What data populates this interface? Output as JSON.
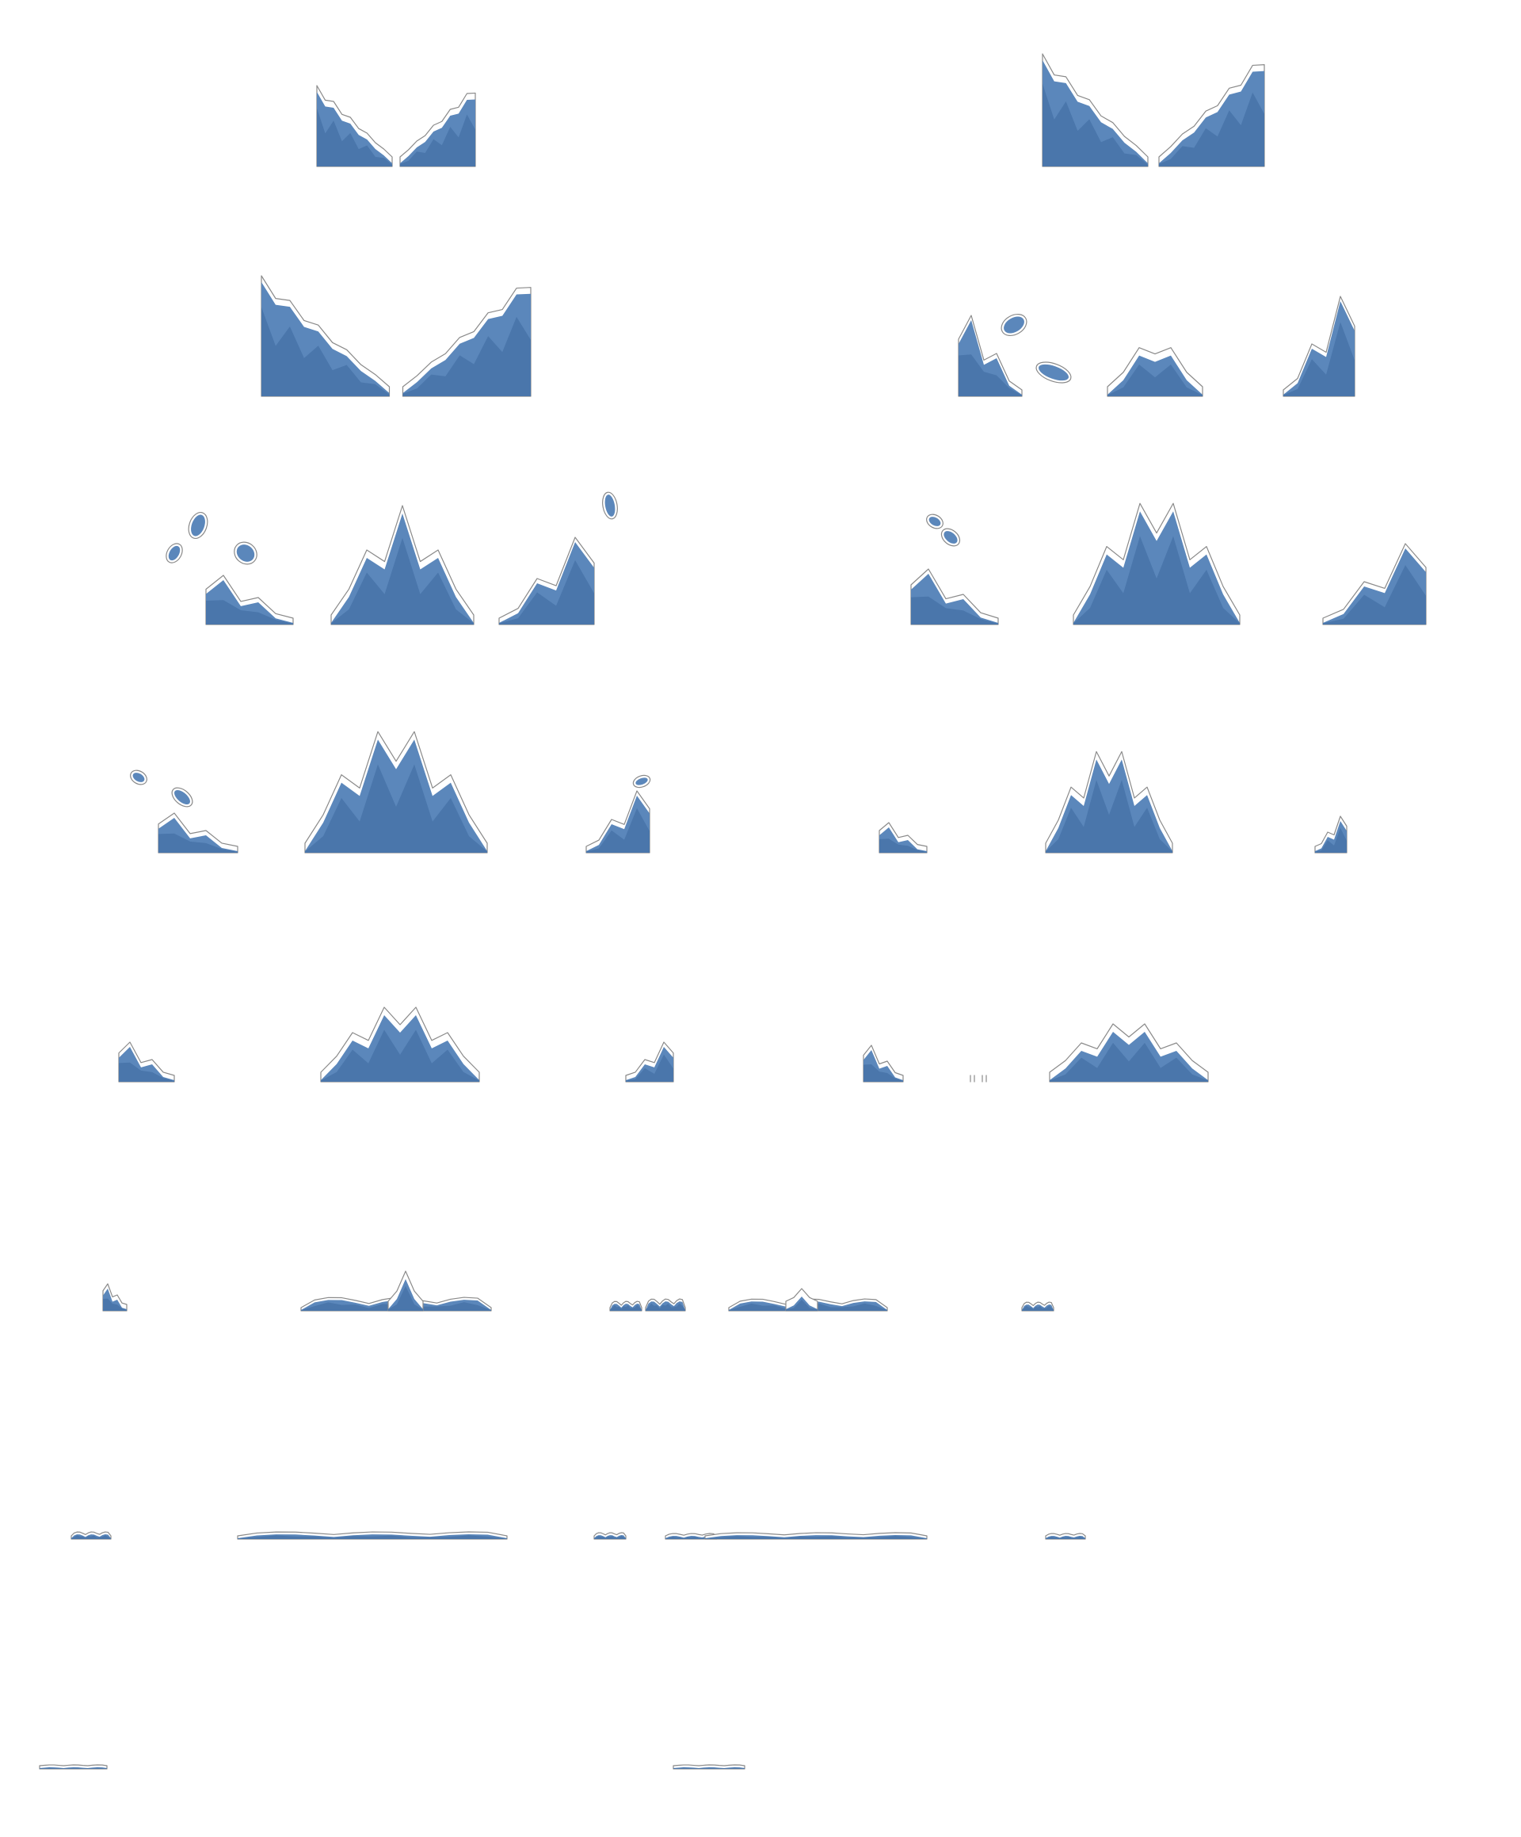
{
  "sprite_sheet": {
    "subject": "water-splash",
    "columns": 2,
    "rows": 8,
    "frame_count": 16,
    "background_color": "#ffffff",
    "colors": {
      "water_main": "#5b87bb",
      "water_shade": "#4a76ab",
      "water_light": "#7aa3d1",
      "outline": "#8a8a8a"
    },
    "frames": [
      {
        "index": 1,
        "phase": "crown-small"
      },
      {
        "index": 2,
        "phase": "crown-wide"
      },
      {
        "index": 3,
        "phase": "crown-spread"
      },
      {
        "index": 4,
        "phase": "column-rising"
      },
      {
        "index": 5,
        "phase": "column-with-droplets"
      },
      {
        "index": 6,
        "phase": "column-peak"
      },
      {
        "index": 7,
        "phase": "column-high"
      },
      {
        "index": 8,
        "phase": "column-settling"
      },
      {
        "index": 9,
        "phase": "column-falling"
      },
      {
        "index": 10,
        "phase": "column-low"
      },
      {
        "index": 11,
        "phase": "ripples"
      },
      {
        "index": 12,
        "phase": "ripples-flat"
      },
      {
        "index": 13,
        "phase": "surface-thin"
      },
      {
        "index": 14,
        "phase": "surface-thinner"
      },
      {
        "index": 15,
        "phase": "faint-line"
      },
      {
        "index": 16,
        "phase": "faint-line"
      }
    ]
  }
}
